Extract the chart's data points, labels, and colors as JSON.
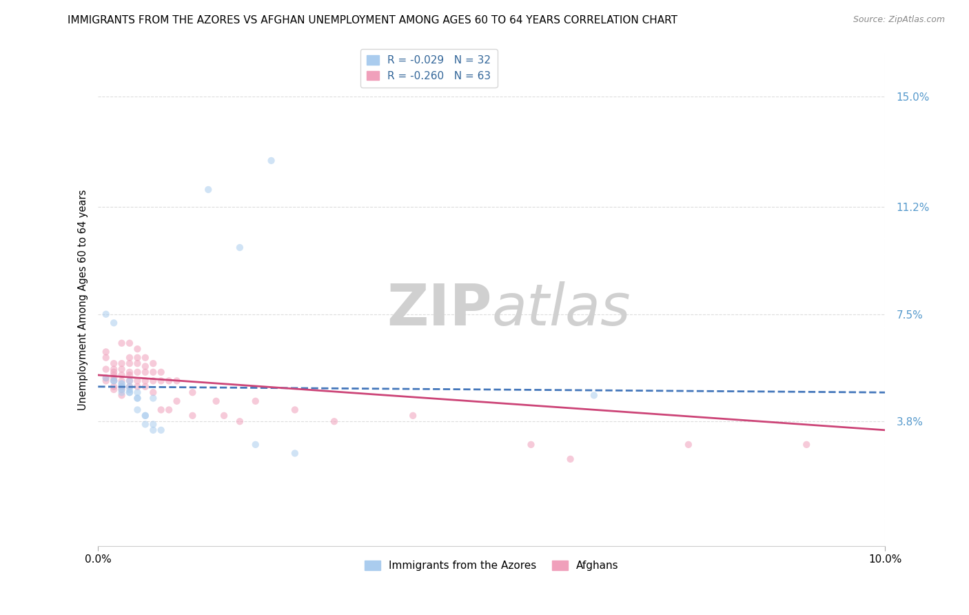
{
  "title": "IMMIGRANTS FROM THE AZORES VS AFGHAN UNEMPLOYMENT AMONG AGES 60 TO 64 YEARS CORRELATION CHART",
  "source": "Source: ZipAtlas.com",
  "ylabel": "Unemployment Among Ages 60 to 64 years",
  "xlabel": "",
  "xlim": [
    0.0,
    0.1
  ],
  "ylim": [
    -0.005,
    0.165
  ],
  "yticks": [
    0.038,
    0.075,
    0.112,
    0.15
  ],
  "ytick_labels": [
    "3.8%",
    "7.5%",
    "11.2%",
    "15.0%"
  ],
  "xticks": [
    0.0,
    0.1
  ],
  "xtick_labels": [
    "0.0%",
    "10.0%"
  ],
  "watermark_zip": "ZIP",
  "watermark_atlas": "atlas",
  "legend_series": [
    {
      "label": "Immigrants from the Azores",
      "R": -0.029,
      "N": 32,
      "color": "#aaccee"
    },
    {
      "label": "Afghans",
      "R": -0.26,
      "N": 63,
      "color": "#f0a0bb"
    }
  ],
  "azores_scatter": [
    [
      0.001,
      0.053
    ],
    [
      0.001,
      0.075
    ],
    [
      0.002,
      0.072
    ],
    [
      0.002,
      0.052
    ],
    [
      0.002,
      0.052
    ],
    [
      0.003,
      0.05
    ],
    [
      0.003,
      0.051
    ],
    [
      0.003,
      0.048
    ],
    [
      0.003,
      0.051
    ],
    [
      0.003,
      0.049
    ],
    [
      0.004,
      0.048
    ],
    [
      0.004,
      0.05
    ],
    [
      0.004,
      0.052
    ],
    [
      0.004,
      0.049
    ],
    [
      0.004,
      0.048
    ],
    [
      0.005,
      0.046
    ],
    [
      0.005,
      0.046
    ],
    [
      0.005,
      0.048
    ],
    [
      0.005,
      0.042
    ],
    [
      0.006,
      0.04
    ],
    [
      0.006,
      0.04
    ],
    [
      0.006,
      0.037
    ],
    [
      0.007,
      0.037
    ],
    [
      0.007,
      0.046
    ],
    [
      0.007,
      0.035
    ],
    [
      0.008,
      0.035
    ],
    [
      0.014,
      0.118
    ],
    [
      0.018,
      0.098
    ],
    [
      0.022,
      0.128
    ],
    [
      0.02,
      0.03
    ],
    [
      0.025,
      0.027
    ],
    [
      0.063,
      0.047
    ]
  ],
  "afghans_scatter": [
    [
      0.001,
      0.062
    ],
    [
      0.001,
      0.06
    ],
    [
      0.001,
      0.056
    ],
    [
      0.001,
      0.053
    ],
    [
      0.001,
      0.052
    ],
    [
      0.002,
      0.058
    ],
    [
      0.002,
      0.056
    ],
    [
      0.002,
      0.055
    ],
    [
      0.002,
      0.054
    ],
    [
      0.002,
      0.053
    ],
    [
      0.002,
      0.052
    ],
    [
      0.002,
      0.05
    ],
    [
      0.002,
      0.049
    ],
    [
      0.003,
      0.065
    ],
    [
      0.003,
      0.058
    ],
    [
      0.003,
      0.056
    ],
    [
      0.003,
      0.054
    ],
    [
      0.003,
      0.052
    ],
    [
      0.003,
      0.05
    ],
    [
      0.003,
      0.049
    ],
    [
      0.003,
      0.047
    ],
    [
      0.004,
      0.06
    ],
    [
      0.004,
      0.058
    ],
    [
      0.004,
      0.055
    ],
    [
      0.004,
      0.054
    ],
    [
      0.004,
      0.052
    ],
    [
      0.004,
      0.065
    ],
    [
      0.004,
      0.05
    ],
    [
      0.005,
      0.063
    ],
    [
      0.005,
      0.06
    ],
    [
      0.005,
      0.058
    ],
    [
      0.005,
      0.055
    ],
    [
      0.005,
      0.052
    ],
    [
      0.005,
      0.05
    ],
    [
      0.006,
      0.06
    ],
    [
      0.006,
      0.057
    ],
    [
      0.006,
      0.055
    ],
    [
      0.006,
      0.052
    ],
    [
      0.006,
      0.05
    ],
    [
      0.007,
      0.058
    ],
    [
      0.007,
      0.055
    ],
    [
      0.007,
      0.052
    ],
    [
      0.007,
      0.048
    ],
    [
      0.008,
      0.055
    ],
    [
      0.008,
      0.052
    ],
    [
      0.008,
      0.042
    ],
    [
      0.009,
      0.052
    ],
    [
      0.009,
      0.042
    ],
    [
      0.01,
      0.045
    ],
    [
      0.01,
      0.052
    ],
    [
      0.012,
      0.048
    ],
    [
      0.012,
      0.04
    ],
    [
      0.015,
      0.045
    ],
    [
      0.016,
      0.04
    ],
    [
      0.018,
      0.038
    ],
    [
      0.02,
      0.045
    ],
    [
      0.025,
      0.042
    ],
    [
      0.03,
      0.038
    ],
    [
      0.04,
      0.04
    ],
    [
      0.055,
      0.03
    ],
    [
      0.06,
      0.025
    ],
    [
      0.075,
      0.03
    ],
    [
      0.09,
      0.03
    ]
  ],
  "azores_line": {
    "x0": 0.0,
    "y0": 0.05,
    "x1": 0.1,
    "y1": 0.048,
    "color": "#4477bb",
    "linestyle": "dashed"
  },
  "afghans_line": {
    "x0": 0.0,
    "y0": 0.054,
    "x1": 0.1,
    "y1": 0.035,
    "color": "#cc4477",
    "linestyle": "solid"
  },
  "background_color": "#ffffff",
  "plot_bg_color": "#ffffff",
  "grid_color": "#dddddd",
  "title_fontsize": 11,
  "axis_label_fontsize": 10.5,
  "tick_fontsize": 11,
  "watermark_color": "#d0d0d0",
  "watermark_fontsize": 60,
  "source_fontsize": 9,
  "legend_fontsize": 11,
  "scatter_size": 55,
  "scatter_alpha": 0.55
}
